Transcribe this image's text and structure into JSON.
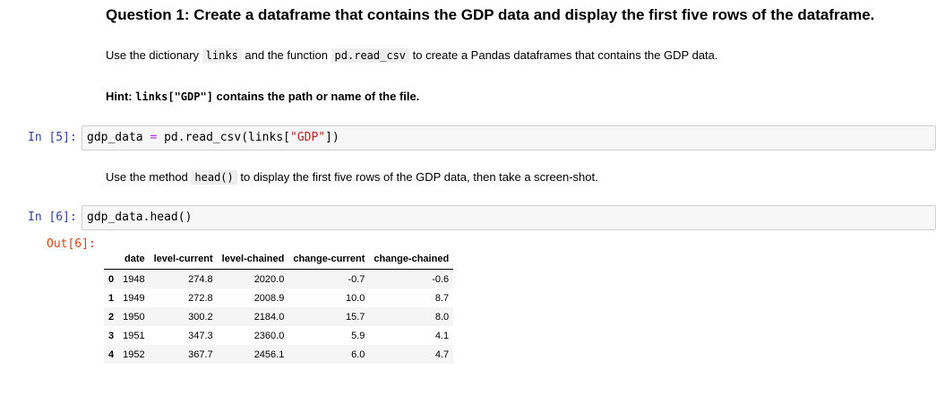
{
  "question": {
    "title": "Question 1: Create a dataframe that contains the GDP data and display the first five rows of the dataframe.",
    "instruction_pre": "Use the dictionary ",
    "instruction_code1": "links",
    "instruction_mid": " and the function ",
    "instruction_code2": "pd.read_csv",
    "instruction_post": " to create a Pandas dataframes that contains the GDP data.",
    "hint_label": "Hint: ",
    "hint_code": "links[\"GDP\"]",
    "hint_text": " contains the path or name of the file."
  },
  "cell1": {
    "prompt": "In [5]:",
    "code_var": "gdp_data",
    "code_op": "=",
    "code_call_pre": "pd.read_csv(links[",
    "code_str": "\"GDP\"",
    "code_call_post": "])"
  },
  "method_text": {
    "pre": "Use the method ",
    "code": "head()",
    "post": " to display the first five rows of the GDP data, then take a screen-shot."
  },
  "cell2": {
    "prompt": "In [6]:",
    "code": "gdp_data.head()",
    "out_prompt": "Out[6]:"
  },
  "dataframe": {
    "columns": [
      "date",
      "level-current",
      "level-chained",
      "change-current",
      "change-chained"
    ],
    "rows": [
      {
        "index": "0",
        "values": [
          "1948",
          "274.8",
          "2020.0",
          "-0.7",
          "-0.6"
        ]
      },
      {
        "index": "1",
        "values": [
          "1949",
          "272.8",
          "2008.9",
          "10.0",
          "8.7"
        ]
      },
      {
        "index": "2",
        "values": [
          "1950",
          "300.2",
          "2184.0",
          "15.7",
          "8.0"
        ]
      },
      {
        "index": "3",
        "values": [
          "1951",
          "347.3",
          "2360.0",
          "5.9",
          "4.1"
        ]
      },
      {
        "index": "4",
        "values": [
          "1952",
          "367.7",
          "2456.1",
          "6.0",
          "4.7"
        ]
      }
    ]
  }
}
